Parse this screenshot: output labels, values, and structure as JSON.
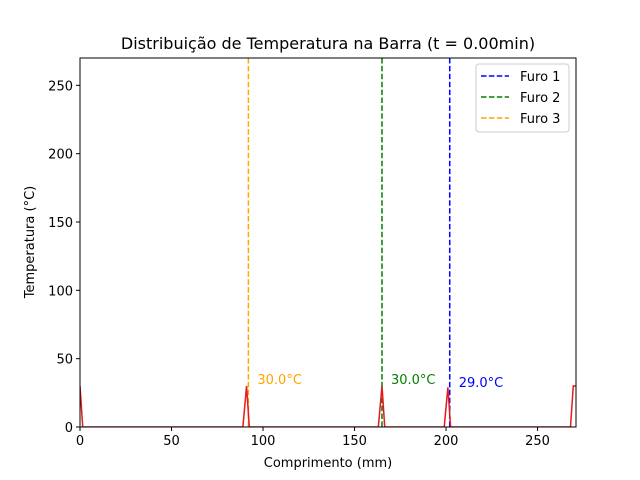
{
  "chart_data": {
    "type": "line",
    "title": "Distribuição de Temperatura na Barra (t = 0.00min)",
    "xlabel": "Comprimento (mm)",
    "ylabel": "Temperatura (°C)",
    "xlim": [
      0,
      271
    ],
    "ylim": [
      0,
      270
    ],
    "xticks": [
      0,
      50,
      100,
      150,
      200,
      250
    ],
    "yticks": [
      0,
      50,
      100,
      150,
      200,
      250
    ],
    "grid": false,
    "legend_position": "top-right",
    "temperature_profile": {
      "color": "#e41a1c",
      "x": [
        0,
        1.5,
        3,
        89,
        91,
        92.5,
        94,
        163,
        165,
        166.5,
        168,
        199,
        201,
        202.5,
        204,
        268,
        269.5,
        271
      ],
      "y": [
        30,
        0,
        0,
        0,
        30,
        0,
        0,
        0,
        30,
        0,
        0,
        0,
        29,
        0,
        0,
        0,
        30,
        30
      ]
    },
    "holes": [
      {
        "name": "Furo 1",
        "x": 202,
        "color": "#0000ff",
        "label": "29.0°C",
        "label_y": 33
      },
      {
        "name": "Furo 2",
        "x": 165,
        "color": "#008000",
        "label": "30.0°C",
        "label_y": 35
      },
      {
        "name": "Furo 3",
        "x": 92,
        "color": "#ffa500",
        "label": "30.0°C",
        "label_y": 35
      }
    ]
  }
}
